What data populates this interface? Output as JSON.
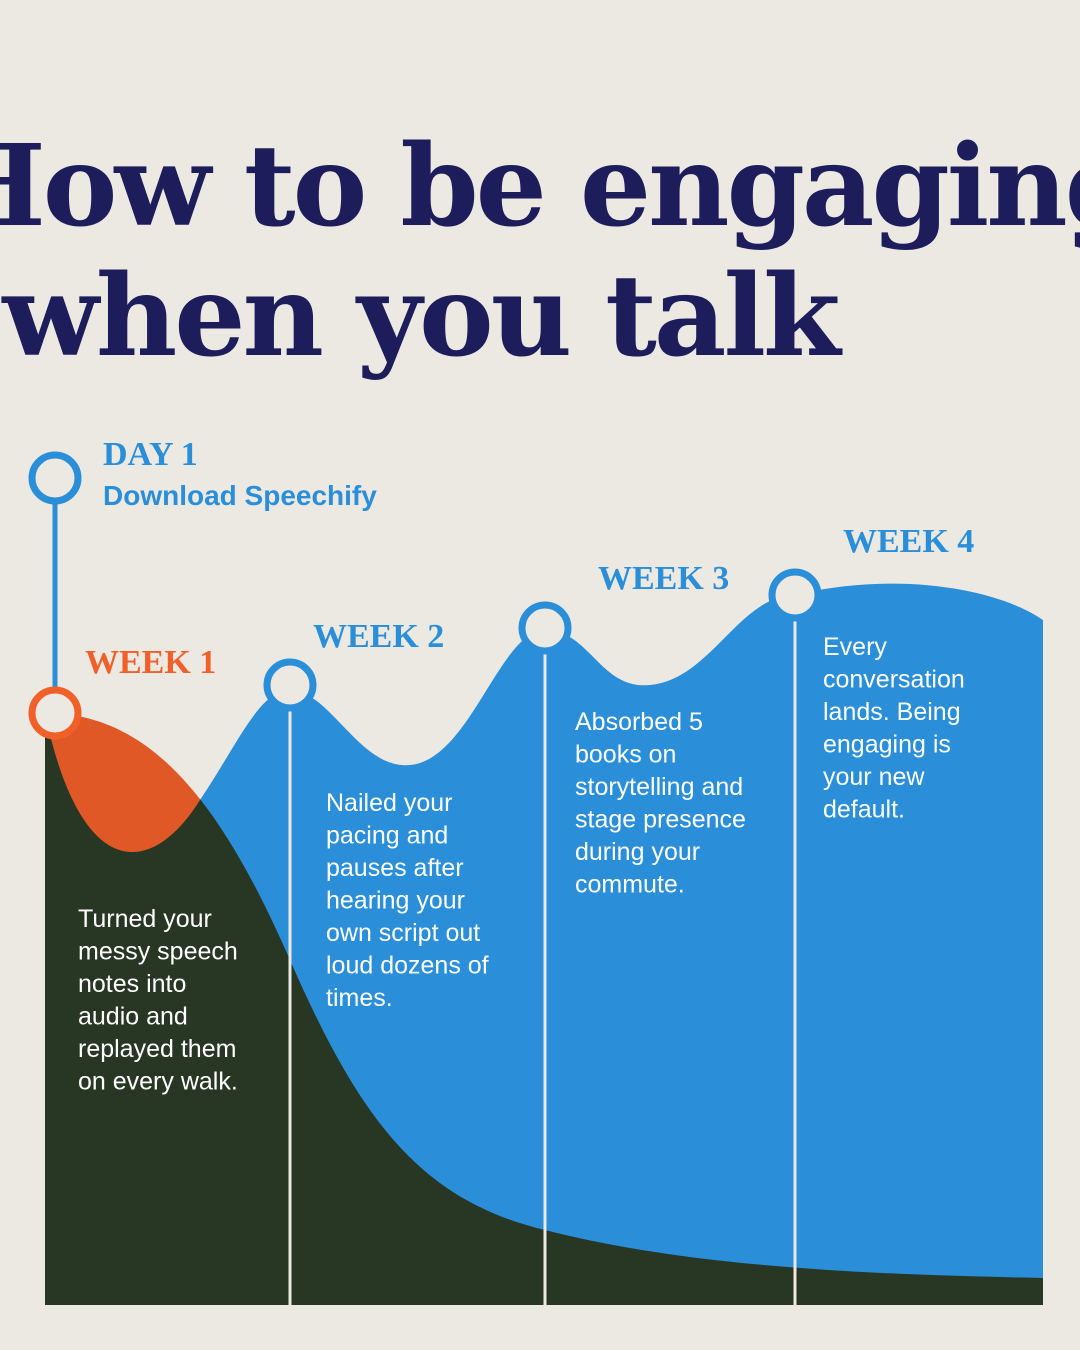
{
  "header": {
    "title_lines": [
      "How to be engaging",
      "when you talk"
    ]
  },
  "start": {
    "label": "DAY 1",
    "text": "Download Speechify"
  },
  "weeks": [
    {
      "label": "WEEK 1",
      "lines": [
        "Turned your",
        "messy speech",
        "notes into",
        "audio and",
        "replayed them",
        "on every walk."
      ]
    },
    {
      "label": "WEEK 2",
      "lines": [
        "Nailed your",
        "pacing and",
        "pauses after",
        "hearing your",
        "own script out",
        "loud dozens of",
        "times."
      ]
    },
    {
      "label": "WEEK 3",
      "lines": [
        "Absorbed 5",
        "books on",
        "storytelling and",
        "stage presence",
        "during your",
        "commute."
      ]
    },
    {
      "label": "WEEK 4",
      "lines": [
        "Every",
        "conversation",
        "lands. Being",
        "engaging is",
        "your new",
        "default."
      ]
    }
  ]
}
